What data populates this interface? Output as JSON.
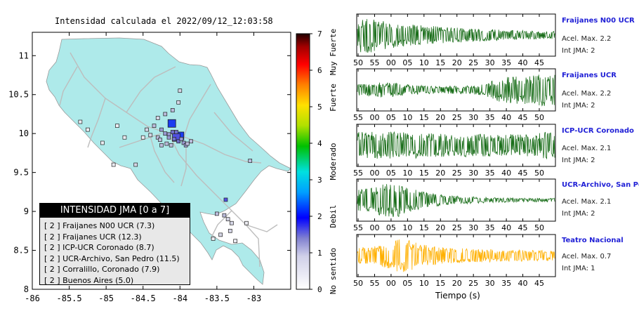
{
  "chart_data": [
    {
      "type": "scatter",
      "title": "Intensidad calculada el 2022/09/12_12:03:58",
      "xlim": [
        -86,
        -82.5
      ],
      "ylim": [
        8,
        11.3
      ],
      "x_ticks": [
        "-86",
        "-85.5",
        "-85",
        "-84.5",
        "-84",
        "-83.5",
        "-83"
      ],
      "y_ticks": [
        "8",
        "8.5",
        "9",
        "9.5",
        "10",
        "10.5",
        "11"
      ],
      "colorbar": {
        "range": [
          0,
          7
        ],
        "ticks": [
          "0",
          "1",
          "2",
          "3",
          "4",
          "5",
          "6",
          "7"
        ],
        "labels": [
          "No sentido",
          "Debil",
          "Moderado",
          "Fuerte",
          "Muy Fuerte"
        ]
      },
      "points": [
        {
          "lon": -84.11,
          "lat": 10.13,
          "int": 2.4,
          "size": "large"
        },
        {
          "lon": -84.0,
          "lat": 9.97,
          "int": 2.6,
          "size": "large"
        },
        {
          "lon": -84.05,
          "lat": 9.95,
          "int": 2.2,
          "size": "large"
        },
        {
          "lon": -84.1,
          "lat": 10.02,
          "int": 1.6
        },
        {
          "lon": -84.15,
          "lat": 9.99,
          "int": 1.5
        },
        {
          "lon": -84.2,
          "lat": 10.0,
          "int": 1.4
        },
        {
          "lon": -84.25,
          "lat": 10.05,
          "int": 1.2
        },
        {
          "lon": -84.08,
          "lat": 9.93,
          "int": 1.7
        },
        {
          "lon": -84.02,
          "lat": 9.9,
          "int": 1.6
        },
        {
          "lon": -83.98,
          "lat": 9.93,
          "int": 1.5
        },
        {
          "lon": -83.95,
          "lat": 9.88,
          "int": 1.3
        },
        {
          "lon": -83.92,
          "lat": 9.85,
          "int": 1.2
        },
        {
          "lon": -84.18,
          "lat": 9.87,
          "int": 1.1
        },
        {
          "lon": -84.12,
          "lat": 9.85,
          "int": 1.0
        },
        {
          "lon": -84.3,
          "lat": 9.95,
          "int": 1.0
        },
        {
          "lon": -84.35,
          "lat": 10.1,
          "int": 0.9
        },
        {
          "lon": -84.2,
          "lat": 10.25,
          "int": 1.0
        },
        {
          "lon": -84.1,
          "lat": 10.3,
          "int": 0.8
        },
        {
          "lon": -84.02,
          "lat": 10.4,
          "int": 0.6
        },
        {
          "lon": -84.3,
          "lat": 10.2,
          "int": 0.6
        },
        {
          "lon": -84.45,
          "lat": 10.05,
          "int": 0.5
        },
        {
          "lon": -84.5,
          "lat": 9.95,
          "int": 0.4
        },
        {
          "lon": -84.4,
          "lat": 9.98,
          "int": 0.7
        },
        {
          "lon": -84.27,
          "lat": 9.92,
          "int": 0.8
        },
        {
          "lon": -84.25,
          "lat": 9.85,
          "int": 0.9
        },
        {
          "lon": -84.15,
          "lat": 9.95,
          "int": 1.3
        },
        {
          "lon": -83.9,
          "lat": 9.87,
          "int": 1.1
        },
        {
          "lon": -83.85,
          "lat": 9.9,
          "int": 0.9
        },
        {
          "lon": -84.6,
          "lat": 9.6,
          "int": 0.6
        },
        {
          "lon": -84.05,
          "lat": 10.02,
          "int": 1.8
        },
        {
          "lon": -83.05,
          "lat": 9.65,
          "int": 0.8
        },
        {
          "lon": -83.38,
          "lat": 9.15,
          "int": 2.0
        },
        {
          "lon": -83.5,
          "lat": 8.97,
          "int": 0.9
        },
        {
          "lon": -83.4,
          "lat": 8.95,
          "int": 0.8
        },
        {
          "lon": -83.35,
          "lat": 8.9,
          "int": 0.7
        },
        {
          "lon": -83.3,
          "lat": 8.85,
          "int": 0.6
        },
        {
          "lon": -83.32,
          "lat": 8.75,
          "int": 0.6
        },
        {
          "lon": -83.1,
          "lat": 8.85,
          "int": 0.4
        },
        {
          "lon": -83.45,
          "lat": 8.7,
          "int": 0.5
        },
        {
          "lon": -83.25,
          "lat": 8.62,
          "int": 0.4
        },
        {
          "lon": -83.55,
          "lat": 8.65,
          "int": 0.4
        },
        {
          "lon": -85.35,
          "lat": 10.15,
          "int": 0.3
        },
        {
          "lon": -85.25,
          "lat": 10.05,
          "int": 0.3
        },
        {
          "lon": -85.05,
          "lat": 9.88,
          "int": 0.3
        },
        {
          "lon": -84.85,
          "lat": 10.1,
          "int": 0.4
        },
        {
          "lon": -84.75,
          "lat": 9.95,
          "int": 0.4
        },
        {
          "lon": -84.0,
          "lat": 10.55,
          "int": 0.5
        },
        {
          "lon": -84.9,
          "lat": 9.6,
          "int": 0.3
        }
      ]
    },
    {
      "type": "line",
      "xlabel": "Tiempo (s)",
      "traces": [
        {
          "station": "Fraijanes N00 UCR",
          "acel": "Acel. Max. 2.2",
          "int": "Int JMA: 2",
          "color": "#1a6e1a",
          "ticks": [
            "50",
            "55",
            "00",
            "05",
            "10",
            "15",
            "20",
            "25",
            "30",
            "35",
            "40",
            "45"
          ],
          "envelope": [
            0.9,
            0.95,
            0.8,
            0.7,
            0.6,
            0.55,
            0.5,
            0.45,
            0.42,
            0.38,
            0.35,
            0.33,
            0.3,
            0.28,
            0.25,
            0.22,
            0.2,
            0.2
          ]
        },
        {
          "station": "Fraijanes UCR",
          "acel": "Acel. Max. 2.2",
          "int": "Int JMA: 2",
          "color": "#1a6e1a",
          "ticks": [
            "55",
            "00",
            "05",
            "10",
            "15",
            "20",
            "25",
            "30",
            "35",
            "40",
            "45",
            "50"
          ],
          "envelope": [
            0.3,
            0.35,
            0.4,
            0.38,
            0.3,
            0.25,
            0.22,
            0.2,
            0.2,
            0.22,
            0.25,
            0.3,
            0.6,
            0.7,
            0.75,
            0.8,
            0.85,
            0.8
          ]
        },
        {
          "station": "ICP-UCR Coronado",
          "acel": "Acel. Max. 2.1",
          "int": "Int JMA: 2",
          "color": "#1a6e1a",
          "ticks": [
            "55",
            "00",
            "05",
            "10",
            "15",
            "20",
            "25",
            "30",
            "35",
            "40",
            "45",
            "50"
          ],
          "envelope": [
            0.7,
            0.75,
            0.7,
            0.72,
            0.7,
            0.68,
            0.65,
            0.62,
            0.6,
            0.6,
            0.62,
            0.6,
            0.58,
            0.6,
            0.62,
            0.6,
            0.7,
            0.75
          ]
        },
        {
          "station": "UCR-Archivo, San Pedro",
          "acel": "Acel. Max. 2.1",
          "int": "Int JMA: 2",
          "color": "#1a6e1a",
          "ticks": [
            "55",
            "00",
            "05",
            "10",
            "15",
            "20",
            "25",
            "30",
            "35",
            "40",
            "45",
            "50"
          ],
          "envelope": [
            0.55,
            0.65,
            0.8,
            0.95,
            0.8,
            0.55,
            0.4,
            0.3,
            0.25,
            0.2,
            0.18,
            0.15,
            0.13,
            0.12,
            0.1,
            0.1,
            0.1,
            0.1
          ]
        },
        {
          "station": "Teatro Nacional",
          "acel": "Acel. Max. 0.7",
          "int": "Int JMA: 1",
          "color": "#ffb000",
          "ticks": [
            "50",
            "55",
            "00",
            "05",
            "10",
            "15",
            "20",
            "25",
            "30",
            "35",
            "40",
            "45"
          ],
          "envelope": [
            0.4,
            0.45,
            0.55,
            0.8,
            0.9,
            0.7,
            0.55,
            0.45,
            0.4,
            0.38,
            0.35,
            0.35,
            0.33,
            0.3,
            0.3,
            0.28,
            0.28,
            0.25
          ]
        }
      ]
    }
  ],
  "legend": {
    "header": "INTENSIDAD JMA [0 a 7]",
    "items": [
      "[ 2 ]  Fraijanes N00 UCR (7.3)",
      "[ 2 ]  Fraijanes UCR (12.3)",
      "[ 2 ]  ICP-UCR Coronado (8.7)",
      "[ 2 ]  UCR-Archivo, San Pedro (11.5)",
      "[ 2 ]  Corralillo, Coronado (7.9)",
      "[ 2 ]  Buenos Aires (5.0)"
    ]
  },
  "colors": {
    "land": "#aeeaea",
    "road": "#bdbdbd",
    "sea": "#ffffff"
  }
}
